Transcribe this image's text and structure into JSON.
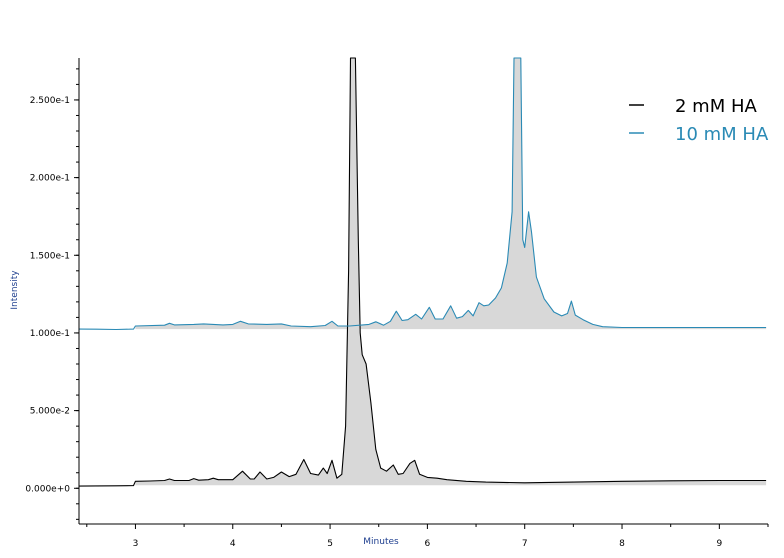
{
  "chart_data": {
    "type": "line",
    "xlabel": "Minutes",
    "ylabel": "Intensity",
    "xlim": [
      2.42,
      9.5
    ],
    "ylim": [
      -0.023,
      0.277
    ],
    "xticks": [
      3,
      4,
      5,
      6,
      7,
      8,
      9
    ],
    "yticks": [
      {
        "value": 0.0,
        "label": "0.000e+0"
      },
      {
        "value": 0.05,
        "label": "5.000e-2"
      },
      {
        "value": 0.1,
        "label": "1.000e-1"
      },
      {
        "value": 0.15,
        "label": "1.500e-1"
      },
      {
        "value": 0.2,
        "label": "2.000e-1"
      },
      {
        "value": 0.25,
        "label": "2.500e-1"
      }
    ],
    "grid": false,
    "legend_position": "top-right",
    "fill_color": "#d8d8d8",
    "series": [
      {
        "name": "2 mM HA",
        "color": "#000000",
        "baseline": 0.002,
        "points": [
          [
            2.42,
            0.0014
          ],
          [
            2.6,
            0.0015
          ],
          [
            2.8,
            0.0016
          ],
          [
            2.98,
            0.0017
          ],
          [
            3.0,
            0.0045
          ],
          [
            3.15,
            0.0047
          ],
          [
            3.3,
            0.005
          ],
          [
            3.35,
            0.006
          ],
          [
            3.4,
            0.005
          ],
          [
            3.55,
            0.005
          ],
          [
            3.6,
            0.0062
          ],
          [
            3.65,
            0.0052
          ],
          [
            3.75,
            0.0055
          ],
          [
            3.8,
            0.0065
          ],
          [
            3.85,
            0.0055
          ],
          [
            4.0,
            0.0055
          ],
          [
            4.1,
            0.011
          ],
          [
            4.18,
            0.006
          ],
          [
            4.22,
            0.006
          ],
          [
            4.28,
            0.0105
          ],
          [
            4.35,
            0.006
          ],
          [
            4.42,
            0.007
          ],
          [
            4.5,
            0.0105
          ],
          [
            4.58,
            0.0075
          ],
          [
            4.65,
            0.009
          ],
          [
            4.73,
            0.0185
          ],
          [
            4.8,
            0.0095
          ],
          [
            4.88,
            0.0085
          ],
          [
            4.93,
            0.013
          ],
          [
            4.97,
            0.0095
          ],
          [
            5.02,
            0.018
          ],
          [
            5.07,
            0.0065
          ],
          [
            5.12,
            0.009
          ],
          [
            5.16,
            0.04
          ],
          [
            5.19,
            0.14
          ],
          [
            5.21,
            0.28
          ],
          [
            5.26,
            0.28
          ],
          [
            5.29,
            0.16
          ],
          [
            5.31,
            0.1
          ],
          [
            5.33,
            0.086
          ],
          [
            5.37,
            0.08
          ],
          [
            5.42,
            0.055
          ],
          [
            5.47,
            0.025
          ],
          [
            5.52,
            0.013
          ],
          [
            5.58,
            0.011
          ],
          [
            5.65,
            0.015
          ],
          [
            5.7,
            0.009
          ],
          [
            5.75,
            0.0095
          ],
          [
            5.82,
            0.016
          ],
          [
            5.87,
            0.018
          ],
          [
            5.92,
            0.009
          ],
          [
            6.0,
            0.007
          ],
          [
            6.1,
            0.0065
          ],
          [
            6.2,
            0.0055
          ],
          [
            6.4,
            0.0045
          ],
          [
            6.6,
            0.004
          ],
          [
            7.0,
            0.0035
          ],
          [
            7.5,
            0.004
          ],
          [
            8.0,
            0.0045
          ],
          [
            8.5,
            0.0048
          ],
          [
            9.0,
            0.005
          ],
          [
            9.48,
            0.005
          ]
        ]
      },
      {
        "name": "10 mM HA",
        "color": "#2a8ab5",
        "baseline": 0.1025,
        "points": [
          [
            2.42,
            0.1025
          ],
          [
            2.6,
            0.1024
          ],
          [
            2.8,
            0.1022
          ],
          [
            2.98,
            0.1025
          ],
          [
            3.0,
            0.1045
          ],
          [
            3.3,
            0.105
          ],
          [
            3.35,
            0.1062
          ],
          [
            3.4,
            0.1052
          ],
          [
            3.6,
            0.1055
          ],
          [
            3.7,
            0.1058
          ],
          [
            3.9,
            0.1052
          ],
          [
            4.0,
            0.1055
          ],
          [
            4.08,
            0.1075
          ],
          [
            4.16,
            0.1058
          ],
          [
            4.35,
            0.1055
          ],
          [
            4.5,
            0.1058
          ],
          [
            4.6,
            0.1045
          ],
          [
            4.8,
            0.104
          ],
          [
            4.95,
            0.1048
          ],
          [
            5.02,
            0.1075
          ],
          [
            5.08,
            0.1045
          ],
          [
            5.2,
            0.1045
          ],
          [
            5.4,
            0.1055
          ],
          [
            5.47,
            0.1072
          ],
          [
            5.55,
            0.105
          ],
          [
            5.62,
            0.1075
          ],
          [
            5.68,
            0.114
          ],
          [
            5.74,
            0.108
          ],
          [
            5.8,
            0.1085
          ],
          [
            5.88,
            0.112
          ],
          [
            5.94,
            0.109
          ],
          [
            6.02,
            0.1165
          ],
          [
            6.08,
            0.109
          ],
          [
            6.16,
            0.109
          ],
          [
            6.24,
            0.1175
          ],
          [
            6.3,
            0.1095
          ],
          [
            6.36,
            0.1105
          ],
          [
            6.42,
            0.1145
          ],
          [
            6.47,
            0.111
          ],
          [
            6.53,
            0.1195
          ],
          [
            6.58,
            0.1175
          ],
          [
            6.63,
            0.118
          ],
          [
            6.7,
            0.1225
          ],
          [
            6.76,
            0.129
          ],
          [
            6.82,
            0.145
          ],
          [
            6.87,
            0.178
          ],
          [
            6.89,
            0.28
          ],
          [
            6.96,
            0.28
          ],
          [
            6.98,
            0.16
          ],
          [
            7.0,
            0.155
          ],
          [
            7.04,
            0.178
          ],
          [
            7.07,
            0.165
          ],
          [
            7.12,
            0.136
          ],
          [
            7.2,
            0.122
          ],
          [
            7.3,
            0.1135
          ],
          [
            7.38,
            0.111
          ],
          [
            7.44,
            0.1125
          ],
          [
            7.48,
            0.1205
          ],
          [
            7.52,
            0.1115
          ],
          [
            7.6,
            0.1085
          ],
          [
            7.7,
            0.1055
          ],
          [
            7.8,
            0.104
          ],
          [
            8.0,
            0.1035
          ],
          [
            8.5,
            0.1035
          ],
          [
            9.0,
            0.1035
          ],
          [
            9.48,
            0.1035
          ]
        ]
      }
    ]
  }
}
